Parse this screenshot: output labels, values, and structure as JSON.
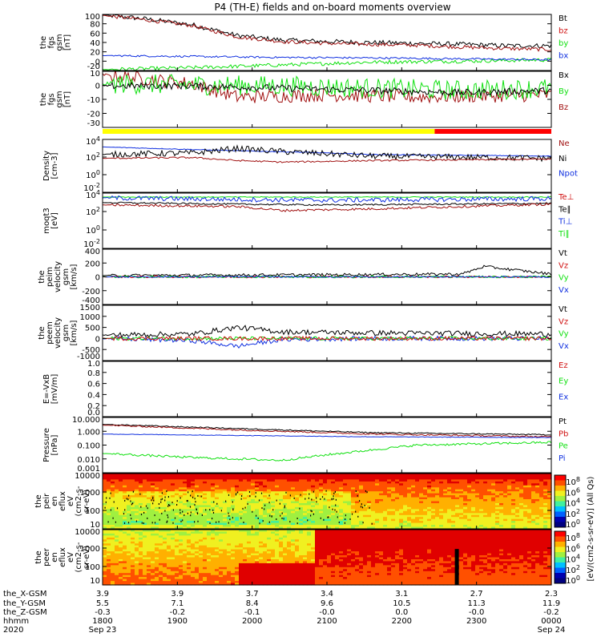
{
  "title": "P4 (TH-E) fields and on-board moments overview",
  "colors": {
    "black": "#000000",
    "red": "#d01010",
    "darkred": "#a01010",
    "green": "#10e010",
    "blue": "#1030e0",
    "yellow": "#ffff00",
    "barred": "#ff0000"
  },
  "chart_data": [
    {
      "type": "line",
      "id": "fgs_b",
      "ylabel": [
        "the",
        "fgs",
        "gsm",
        "[nT]"
      ],
      "ylim": [
        -20,
        100
      ],
      "ticks": [
        "100",
        "80",
        "60",
        "40",
        "20",
        "0",
        "-20"
      ],
      "legend": [
        {
          "name": "Bt",
          "color": "black"
        },
        {
          "name": "bz",
          "color": "red"
        },
        {
          "name": "by",
          "color": "green"
        },
        {
          "name": "bx",
          "color": "blue"
        }
      ],
      "series": [
        {
          "name": "Bt",
          "color": "black",
          "x": [
            0,
            0.1,
            0.2,
            0.3,
            0.4,
            0.5,
            0.6,
            0.7,
            0.8,
            0.9,
            1.0
          ],
          "y": [
            99,
            90,
            78,
            55,
            45,
            42,
            40,
            38,
            36,
            33,
            33
          ],
          "noise": 5
        },
        {
          "name": "bz",
          "color": "darkred",
          "x": [
            0,
            0.1,
            0.2,
            0.3,
            0.4,
            0.5,
            0.6,
            0.7,
            0.8,
            0.9,
            1.0
          ],
          "y": [
            98,
            88,
            76,
            52,
            42,
            38,
            36,
            34,
            30,
            27,
            25
          ],
          "noise": 4
        },
        {
          "name": "by",
          "color": "green",
          "x": [
            0,
            0.2,
            0.4,
            0.6,
            0.8,
            1.0
          ],
          "y": [
            -18,
            -14,
            -8,
            -2,
            0,
            3
          ],
          "noise": 4
        },
        {
          "name": "bx",
          "color": "blue",
          "x": [
            0,
            0.2,
            0.4,
            0.6,
            0.8,
            1.0
          ],
          "y": [
            12,
            10,
            8,
            7,
            5,
            3
          ],
          "noise": 2
        }
      ]
    },
    {
      "type": "line",
      "id": "fgs_c",
      "ylabel": [
        "the",
        "fgs",
        "gsm",
        "[nT]"
      ],
      "ylim": [
        -35,
        15
      ],
      "ticks": [
        "10",
        "0",
        "-10",
        "-20",
        "-30"
      ],
      "legend": [
        {
          "name": "Bx",
          "color": "black"
        },
        {
          "name": "By",
          "color": "green"
        },
        {
          "name": "Bz",
          "color": "darkred"
        }
      ],
      "series": [
        {
          "name": "Bz",
          "color": "darkred",
          "x": [
            0,
            0.1,
            0.2,
            0.3,
            0.5,
            0.7,
            1.0
          ],
          "y": [
            12,
            8,
            4,
            -8,
            -6,
            -8,
            -6
          ],
          "noise": 6
        },
        {
          "name": "By",
          "color": "green",
          "x": [
            0,
            0.2,
            0.4,
            0.6,
            0.8,
            1.0
          ],
          "y": [
            4,
            3,
            2,
            0,
            -2,
            0
          ],
          "noise": 9
        },
        {
          "name": "Bx",
          "color": "black",
          "x": [
            0,
            0.2,
            0.4,
            0.6,
            0.8,
            1.0
          ],
          "y": [
            2,
            2,
            0,
            -2,
            -4,
            -2
          ],
          "noise": 3
        }
      ]
    },
    {
      "type": "line",
      "id": "density",
      "ylabel": [
        "Density",
        "[cm-3]"
      ],
      "log": true,
      "ylim": [
        -3,
        4
      ],
      "ticks": [
        "10^4",
        "10^2",
        "10^0",
        "10^-2"
      ],
      "legend": [
        {
          "name": "Ne",
          "color": "darkred"
        },
        {
          "name": "Ni",
          "color": "black"
        },
        {
          "name": "Npot",
          "color": "blue"
        }
      ],
      "series": [
        {
          "name": "Npot",
          "color": "blue",
          "x": [
            0,
            0.3,
            0.45,
            0.6,
            1.0
          ],
          "y": [
            3,
            2.5,
            2.3,
            2.0,
            1.8
          ],
          "noise": 0.05
        },
        {
          "name": "Ni",
          "color": "black",
          "x": [
            0,
            0.2,
            0.3,
            0.4,
            0.6,
            1.0
          ],
          "y": [
            2,
            2.2,
            2.8,
            2.4,
            1.8,
            1.5
          ],
          "noise": 0.4
        },
        {
          "name": "Ne",
          "color": "darkred",
          "x": [
            0,
            0.2,
            0.3,
            0.4,
            0.6,
            1.0
          ],
          "y": [
            1.5,
            1.6,
            1.2,
            1.0,
            1.2,
            1.4
          ],
          "noise": 0.1
        }
      ]
    },
    {
      "type": "line",
      "id": "temp",
      "ylabel": [
        "moqt3",
        "[eV]"
      ],
      "log": true,
      "ylim": [
        -2,
        5
      ],
      "ticks": [
        "10^4",
        "10^2",
        "10^0",
        "10^-2"
      ],
      "legend": [
        {
          "name": "Te⊥",
          "color": "red"
        },
        {
          "name": "Te∥",
          "color": "black"
        },
        {
          "name": "Ti⊥",
          "color": "blue"
        },
        {
          "name": "Ti∥",
          "color": "green"
        }
      ],
      "series": [
        {
          "name": "Ti∥",
          "color": "green",
          "x": [
            0,
            1.0
          ],
          "y": [
            4.5,
            4.5
          ],
          "noise": 0.05
        },
        {
          "name": "Ti⊥",
          "color": "blue",
          "x": [
            0,
            0.3,
            0.5,
            1.0
          ],
          "y": [
            4.4,
            4.2,
            4.1,
            4.3
          ],
          "noise": 0.3
        },
        {
          "name": "Te∥",
          "color": "black",
          "x": [
            0,
            0.3,
            0.5,
            1.0
          ],
          "y": [
            3.8,
            3.6,
            3.5,
            3.7
          ],
          "noise": 0.1
        },
        {
          "name": "Te⊥",
          "color": "darkred",
          "x": [
            0,
            0.3,
            0.4,
            0.6,
            1.0
          ],
          "y": [
            3.5,
            3.3,
            2.8,
            3.0,
            3.6
          ],
          "noise": 0.15
        }
      ]
    },
    {
      "type": "line",
      "id": "peim",
      "ylabel": [
        "the",
        "peim",
        "velocity",
        "gsm",
        "[km/s]"
      ],
      "ylim": [
        -400,
        400
      ],
      "ticks": [
        "400",
        "200",
        "0",
        "-200",
        "-400"
      ],
      "legend": [
        {
          "name": "Vt",
          "color": "black"
        },
        {
          "name": "Vz",
          "color": "red"
        },
        {
          "name": "Vy",
          "color": "green"
        },
        {
          "name": "Vx",
          "color": "blue"
        }
      ],
      "series": [
        {
          "name": "Vt",
          "color": "black",
          "x": [
            0,
            0.5,
            0.8,
            0.85,
            1.0
          ],
          "y": [
            20,
            30,
            40,
            150,
            40
          ],
          "noise": 20
        },
        {
          "name": "Vz",
          "color": "red",
          "x": [
            0,
            1.0
          ],
          "y": [
            0,
            0
          ],
          "noise": 15
        },
        {
          "name": "Vy",
          "color": "green",
          "x": [
            0,
            1.0
          ],
          "y": [
            0,
            0
          ],
          "noise": 15
        },
        {
          "name": "Vx",
          "color": "blue",
          "x": [
            0,
            1.0
          ],
          "y": [
            0,
            0
          ],
          "noise": 10
        }
      ]
    },
    {
      "type": "line",
      "id": "peem",
      "ylabel": [
        "the",
        "peem",
        "velocity",
        "gsm",
        "[km/s]"
      ],
      "ylim": [
        -1000,
        1500
      ],
      "ticks": [
        "1500",
        "1000",
        "500",
        "0",
        "-500",
        "-1000"
      ],
      "legend": [
        {
          "name": "Vt",
          "color": "black"
        },
        {
          "name": "Vz",
          "color": "red"
        },
        {
          "name": "Vy",
          "color": "green"
        },
        {
          "name": "Vx",
          "color": "blue"
        }
      ],
      "series": [
        {
          "name": "Vt",
          "color": "black",
          "x": [
            0,
            0.2,
            0.3,
            0.4,
            0.6,
            1.0
          ],
          "y": [
            150,
            200,
            500,
            300,
            250,
            200
          ],
          "noise": 120
        },
        {
          "name": "Vx",
          "color": "blue",
          "x": [
            0,
            0.2,
            0.3,
            0.4,
            0.6,
            1.0
          ],
          "y": [
            0,
            -100,
            -350,
            -50,
            0,
            0
          ],
          "noise": 100
        },
        {
          "name": "Vy",
          "color": "green",
          "x": [
            0,
            1.0
          ],
          "y": [
            0,
            0
          ],
          "noise": 80
        },
        {
          "name": "Vz",
          "color": "red",
          "x": [
            0,
            1.0
          ],
          "y": [
            0,
            0
          ],
          "noise": 90
        }
      ]
    },
    {
      "type": "line",
      "id": "exb",
      "ylabel": [
        "E=-VxB",
        "[mV/m]"
      ],
      "ylim": [
        0,
        1
      ],
      "ticks": [
        "1.0",
        "0.8",
        "0.6",
        "0.4",
        "0.2",
        "0.0"
      ],
      "legend": [
        {
          "name": "Ez",
          "color": "red"
        },
        {
          "name": "Ey",
          "color": "green"
        },
        {
          "name": "Ex",
          "color": "blue"
        }
      ],
      "series": []
    },
    {
      "type": "line",
      "id": "pressure",
      "ylabel": [
        "Pressure",
        "[nPa]"
      ],
      "log": true,
      "ylim": [
        -3,
        1
      ],
      "ticks": [
        "10.000",
        "1.000",
        "0.100",
        "0.010",
        "0.001"
      ],
      "legend": [
        {
          "name": "Pt",
          "color": "black"
        },
        {
          "name": "Pb",
          "color": "red"
        },
        {
          "name": "Pe",
          "color": "green"
        },
        {
          "name": "Pi",
          "color": "blue"
        }
      ],
      "series": [
        {
          "name": "Pt",
          "color": "black",
          "x": [
            0,
            0.3,
            0.6,
            1.0
          ],
          "y": [
            0.5,
            0.2,
            -0.1,
            -0.25
          ],
          "noise": 0.04
        },
        {
          "name": "Pb",
          "color": "darkred",
          "x": [
            0,
            0.3,
            0.6,
            1.0
          ],
          "y": [
            0.45,
            0.1,
            -0.2,
            -0.4
          ],
          "noise": 0.05
        },
        {
          "name": "Pi",
          "color": "blue",
          "x": [
            0,
            0.3,
            0.6,
            1.0
          ],
          "y": [
            -0.2,
            -0.3,
            -0.4,
            -0.45
          ],
          "noise": 0.02
        },
        {
          "name": "Pe",
          "color": "green",
          "x": [
            0,
            0.2,
            0.4,
            0.5,
            0.7,
            1.0
          ],
          "y": [
            -1.6,
            -1.9,
            -2.1,
            -1.7,
            -1.0,
            -0.8
          ],
          "noise": 0.08
        }
      ]
    },
    {
      "type": "heatmap",
      "id": "peir",
      "ylabel": [
        "the",
        "peir",
        "en",
        "eflux",
        "eV",
        "(cm2-s-",
        "sr-eV)"
      ],
      "ticks": [
        "10000",
        "1000",
        "100",
        "10"
      ]
    },
    {
      "type": "heatmap",
      "id": "peer",
      "ylabel": [
        "the",
        "peer",
        "en",
        "eflux",
        "eV",
        "(cm2-s-",
        "sr-eV)"
      ],
      "ticks": [
        "10000",
        "1000",
        "100",
        "10"
      ]
    }
  ],
  "colorbar": {
    "label": "[eV/(cm2-s-sr-eV)] (All Qs)",
    "ticks": [
      "10^8",
      "10^6",
      "10^4",
      "10^2",
      "10^0"
    ]
  },
  "ephemeris": {
    "row_labels": [
      "the_X-GSM",
      "the_Y-GSM",
      "the_Z-GSM",
      "hhmm",
      "2020"
    ],
    "columns": [
      {
        "x": "3.9",
        "y": "5.5",
        "z": "-0.3",
        "hhmm": "1800",
        "date": "Sep 23"
      },
      {
        "x": "3.9",
        "y": "7.1",
        "z": "-0.2",
        "hhmm": "1900",
        "date": ""
      },
      {
        "x": "3.7",
        "y": "8.4",
        "z": "-0.1",
        "hhmm": "2000",
        "date": ""
      },
      {
        "x": "3.4",
        "y": "9.6",
        "z": "-0.0",
        "hhmm": "2100",
        "date": ""
      },
      {
        "x": "3.1",
        "y": "10.5",
        "z": "0.0",
        "hhmm": "2200",
        "date": ""
      },
      {
        "x": "2.7",
        "y": "11.3",
        "z": "-0.0",
        "hhmm": "2300",
        "date": ""
      },
      {
        "x": "2.3",
        "y": "11.9",
        "z": "-0.2",
        "hhmm": "0000",
        "date": "Sep 24"
      }
    ]
  },
  "mode_bar": [
    {
      "from": 0,
      "to": 0.74,
      "color": "yellow"
    },
    {
      "from": 0.74,
      "to": 1.0,
      "color": "barred"
    }
  ]
}
